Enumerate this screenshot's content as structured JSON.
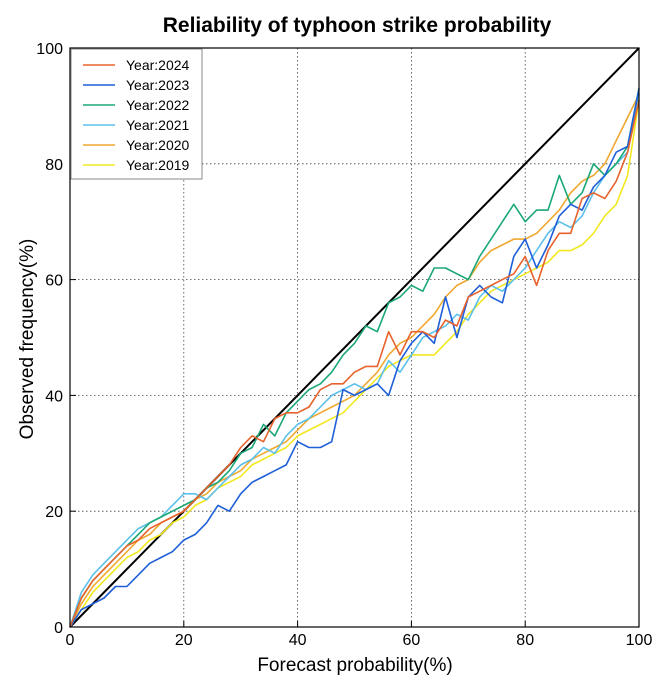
{
  "chart_data": {
    "type": "line",
    "title": "Reliability of typhoon strike probability",
    "xlabel": "Forecast probability(%)",
    "ylabel": "Observed frequency(%)",
    "xlim": [
      0,
      100
    ],
    "ylim": [
      0,
      100
    ],
    "xticks": [
      0,
      20,
      40,
      60,
      80,
      100
    ],
    "yticks": [
      0,
      20,
      40,
      60,
      80,
      100
    ],
    "grid": "dotted",
    "legend_position": "top-left",
    "x": [
      0,
      2,
      4,
      6,
      8,
      10,
      12,
      14,
      16,
      18,
      20,
      22,
      24,
      26,
      28,
      30,
      32,
      34,
      36,
      38,
      40,
      42,
      44,
      46,
      48,
      50,
      52,
      54,
      56,
      58,
      60,
      62,
      64,
      66,
      68,
      70,
      72,
      74,
      76,
      78,
      80,
      82,
      84,
      86,
      88,
      90,
      92,
      94,
      96,
      98,
      100
    ],
    "diagonal": {
      "x": [
        0,
        100
      ],
      "y": [
        0,
        100
      ],
      "color": "#000000"
    },
    "series": [
      {
        "name": "Year:2024",
        "color": "#e8622c",
        "values": [
          0,
          5,
          8,
          10,
          12,
          14,
          15,
          17,
          18,
          19,
          20,
          22,
          24,
          26,
          28,
          31,
          33,
          32,
          36,
          37,
          37,
          38,
          41,
          42,
          42,
          44,
          45,
          45,
          51,
          47,
          51,
          51,
          50,
          53,
          52,
          57,
          58,
          59,
          60,
          61,
          64,
          59,
          65,
          68,
          68,
          74,
          75,
          74,
          77,
          82,
          91
        ]
      },
      {
        "name": "Year:2023",
        "color": "#1f5fd8",
        "values": [
          0,
          3,
          4,
          5,
          7,
          7,
          9,
          11,
          12,
          13,
          15,
          16,
          18,
          21,
          20,
          23,
          25,
          26,
          27,
          28,
          32,
          31,
          31,
          32,
          41,
          40,
          41,
          42,
          40,
          46,
          49,
          51,
          49,
          57,
          50,
          57,
          59,
          57,
          56,
          64,
          67,
          62,
          66,
          71,
          73,
          72,
          76,
          78,
          82,
          83,
          93
        ]
      },
      {
        "name": "Year:2022",
        "color": "#1aa877",
        "values": [
          0,
          5,
          8,
          10,
          12,
          14,
          16,
          18,
          19,
          20,
          21,
          22,
          24,
          25,
          27,
          30,
          31,
          35,
          33,
          37,
          39,
          41,
          42,
          44,
          47,
          49,
          52,
          51,
          56,
          57,
          59,
          58,
          62,
          62,
          61,
          60,
          64,
          67,
          70,
          73,
          70,
          72,
          72,
          78,
          73,
          75,
          80,
          78,
          80,
          83,
          93
        ]
      },
      {
        "name": "Year:2021",
        "color": "#5bc0eb",
        "values": [
          0,
          6,
          9,
          11,
          13,
          15,
          17,
          18,
          19,
          21,
          23,
          23,
          22,
          24,
          26,
          28,
          29,
          31,
          30,
          33,
          35,
          36,
          38,
          40,
          41,
          42,
          41,
          42,
          46,
          44,
          47,
          50,
          51,
          52,
          54,
          53,
          57,
          59,
          58,
          60,
          62,
          65,
          68,
          70,
          69,
          71,
          75,
          78,
          80,
          82,
          92
        ]
      },
      {
        "name": "Year:2020",
        "color": "#f0a830",
        "values": [
          0,
          4,
          7,
          9,
          11,
          13,
          15,
          16,
          18,
          19,
          20,
          22,
          23,
          25,
          26,
          27,
          29,
          30,
          31,
          32,
          34,
          36,
          37,
          38,
          39,
          40,
          42,
          44,
          47,
          49,
          50,
          52,
          54,
          57,
          59,
          60,
          63,
          65,
          66,
          67,
          67,
          68,
          70,
          72,
          75,
          77,
          78,
          80,
          84,
          88,
          92
        ]
      },
      {
        "name": "Year:2019",
        "color": "#f2e81f",
        "values": [
          0,
          3,
          6,
          8,
          10,
          12,
          13,
          15,
          16,
          18,
          19,
          21,
          22,
          24,
          25,
          26,
          28,
          29,
          30,
          31,
          33,
          34,
          35,
          36,
          37,
          39,
          41,
          43,
          45,
          46,
          47,
          47,
          47,
          49,
          51,
          54,
          56,
          58,
          59,
          60,
          61,
          62,
          63,
          65,
          65,
          66,
          68,
          71,
          73,
          78,
          91
        ]
      }
    ]
  }
}
